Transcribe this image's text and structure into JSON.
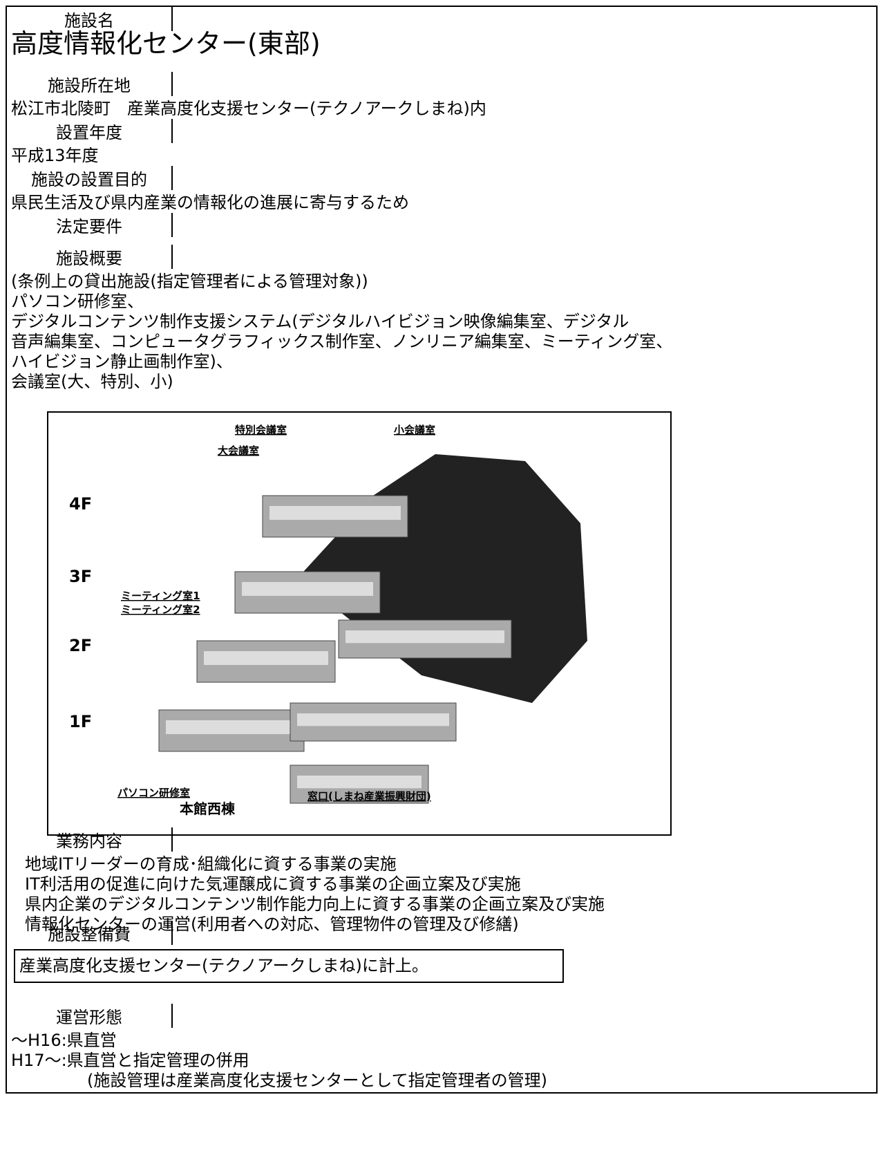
{
  "rows": [
    {
      "label": "施設名",
      "content": [
        "高度情報化センター(東部)"
      ]
    },
    {
      "label": "施設所在地",
      "content": [
        "松江市北陵町　産業高度化支援センター(テクノアークしまね)内"
      ]
    },
    {
      "label": "設置年度",
      "content": [
        "平成13年度"
      ]
    },
    {
      "label": "施設の設置目的",
      "content": [
        "県民生活及び県内産業の情報化の進展に寄与するため"
      ]
    },
    {
      "label": "法定要件",
      "content": []
    },
    {
      "label": "施設概要",
      "content": [
        "(条例上の貸出施設(指定管理者による管理対象))",
        "パソコン研修室、",
        "デジタルコンテンツ制作支援システム(デジタルハイビジョン映像編集室、デジタル",
        "音声編集室、コンピュータグラフィックス制作室、ノンリニア編集室、ミーティング室、",
        "ハイビジョン静止画制作室)、",
        "会議室(大、特別、小)"
      ]
    },
    {
      "label": "業務内容",
      "content": [
        "地域ITリーダーの育成･組織化に資する事業の実施",
        "IT利活用の促進に向けた気運醸成に資する事業の企画立案及び実施",
        "県内企業のデジタルコンテンツ制作能力向上に資する事業の企画立案及び実施",
        "情報化センターの運営(利用者への対応、管理物件の管理及び修繕)"
      ]
    },
    {
      "label": "施設整備費",
      "content": [
        "産業高度化支援センター(テクノアークしまね)に計上。"
      ]
    },
    {
      "label": "運営形態",
      "content": [
        "～H16:県直営",
        "H17～:県直営と指定管理の併用",
        "(施設管理は産業高度化支援センターとして指定管理者の管理)"
      ]
    }
  ],
  "diagram": {
    "floors": [
      "4F",
      "3F",
      "2F",
      "1F"
    ],
    "rooms": [
      "特別会議室",
      "小会議室",
      "大会議室",
      "ミーティング室1",
      "ミーティング室2",
      "パソコン研修室",
      "窓口(しまね産業振興財団)"
    ],
    "building": "本館西棟"
  }
}
